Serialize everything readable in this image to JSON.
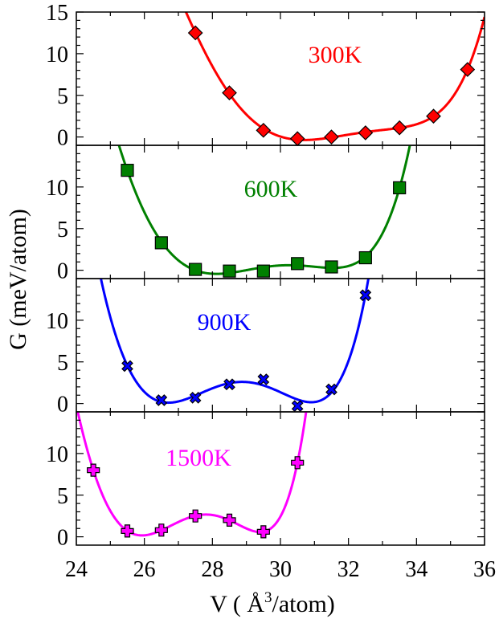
{
  "chart_data": {
    "type": "scatter",
    "xlabel": "V ( Å³/atom)",
    "xlabel_parts": {
      "prefix": "V ( Å",
      "sup": "3",
      "suffix": "/atom)"
    },
    "ylabel": "G (meV/atom)",
    "xlim": [
      24,
      36
    ],
    "x_ticks": [
      "24",
      "26",
      "28",
      "30",
      "32",
      "34",
      "36"
    ],
    "panels": [
      {
        "name": "300K",
        "color": "#ff0000",
        "marker": "diamond",
        "ylim": [
          -1,
          15
        ],
        "y_ticks": [
          "0",
          "5",
          "10",
          "15"
        ],
        "points": [
          {
            "x": 27.5,
            "y": 12.5
          },
          {
            "x": 28.5,
            "y": 5.3
          },
          {
            "x": 29.5,
            "y": 0.8
          },
          {
            "x": 30.5,
            "y": -0.2
          },
          {
            "x": 31.5,
            "y": 0.0
          },
          {
            "x": 32.5,
            "y": 0.5
          },
          {
            "x": 33.5,
            "y": 1.1
          },
          {
            "x": 34.5,
            "y": 2.5
          },
          {
            "x": 35.5,
            "y": 8.1
          }
        ]
      },
      {
        "name": "600K",
        "color": "#008000",
        "marker": "square",
        "ylim": [
          -1,
          15
        ],
        "y_ticks": [
          "0",
          "5",
          "10"
        ],
        "points": [
          {
            "x": 25.5,
            "y": 12.0
          },
          {
            "x": 26.5,
            "y": 3.3
          },
          {
            "x": 27.5,
            "y": 0.1
          },
          {
            "x": 28.5,
            "y": -0.1
          },
          {
            "x": 29.5,
            "y": -0.1
          },
          {
            "x": 30.5,
            "y": 0.8
          },
          {
            "x": 31.5,
            "y": 0.4
          },
          {
            "x": 32.5,
            "y": 1.5
          },
          {
            "x": 33.5,
            "y": 9.9
          }
        ]
      },
      {
        "name": "900K",
        "color": "#0000ff",
        "marker": "x",
        "ylim": [
          -1,
          15
        ],
        "y_ticks": [
          "0",
          "5",
          "10"
        ],
        "points": [
          {
            "x": 25.5,
            "y": 4.5
          },
          {
            "x": 26.5,
            "y": 0.4
          },
          {
            "x": 27.5,
            "y": 0.7
          },
          {
            "x": 28.5,
            "y": 2.3
          },
          {
            "x": 29.5,
            "y": 2.9
          },
          {
            "x": 30.5,
            "y": -0.3
          },
          {
            "x": 31.5,
            "y": 1.7
          },
          {
            "x": 32.5,
            "y": 13.0
          }
        ]
      },
      {
        "name": "1500K",
        "color": "#ff00ff",
        "marker": "plus",
        "ylim": [
          -1,
          15
        ],
        "y_ticks": [
          "0",
          "5",
          "10"
        ],
        "points": [
          {
            "x": 24.5,
            "y": 8.0
          },
          {
            "x": 25.5,
            "y": 0.7
          },
          {
            "x": 26.5,
            "y": 0.8
          },
          {
            "x": 27.5,
            "y": 2.5
          },
          {
            "x": 28.5,
            "y": 2.0
          },
          {
            "x": 29.5,
            "y": 0.6
          },
          {
            "x": 30.5,
            "y": 8.9
          }
        ]
      }
    ]
  }
}
